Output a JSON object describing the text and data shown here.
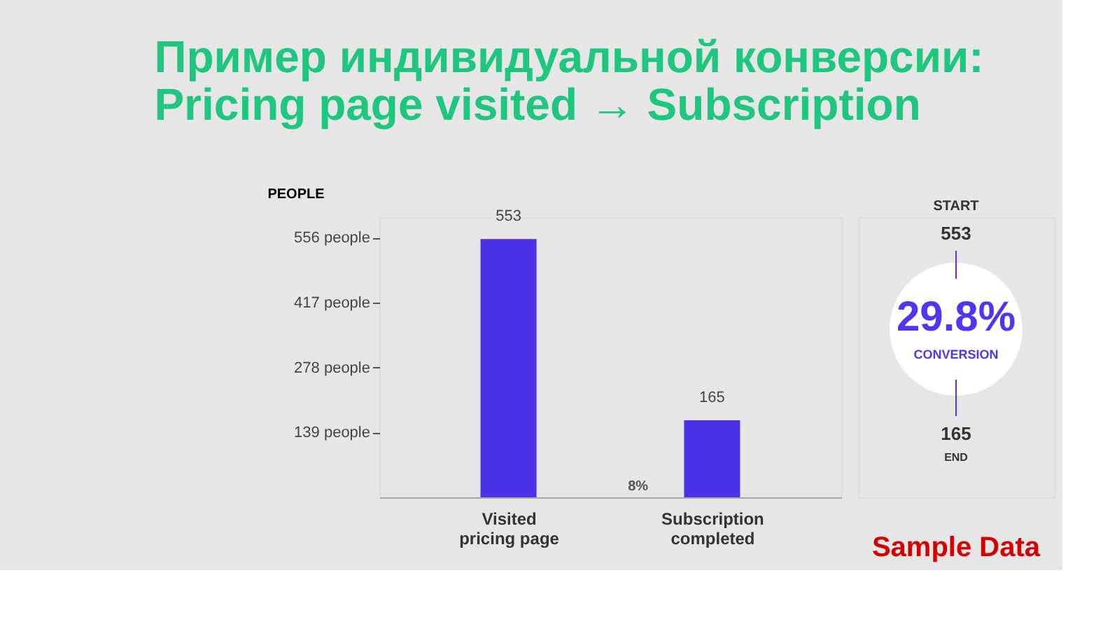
{
  "chart_data": {
    "type": "bar",
    "title": [
      "Пример индивидуальной конверсии:",
      "Pricing page visited → Subscription"
    ],
    "ylabel": "PEOPLE",
    "categories": [
      "Visited pricing page",
      "Subscription completed"
    ],
    "values": [
      553,
      165
    ],
    "color": "#4b32e6",
    "ylim": [
      0,
      600
    ],
    "yticks": [
      {
        "value": 139,
        "label": "139 people"
      },
      {
        "value": 278,
        "label": "278 people"
      },
      {
        "value": 417,
        "label": "417 people"
      },
      {
        "value": 556,
        "label": "556 people"
      }
    ],
    "data_labels": true,
    "grid": false,
    "annotations": [
      "8%",
      "START",
      "553",
      "29.8%",
      "CONVERSION",
      "165",
      "END",
      "Sample Data"
    ]
  }
}
